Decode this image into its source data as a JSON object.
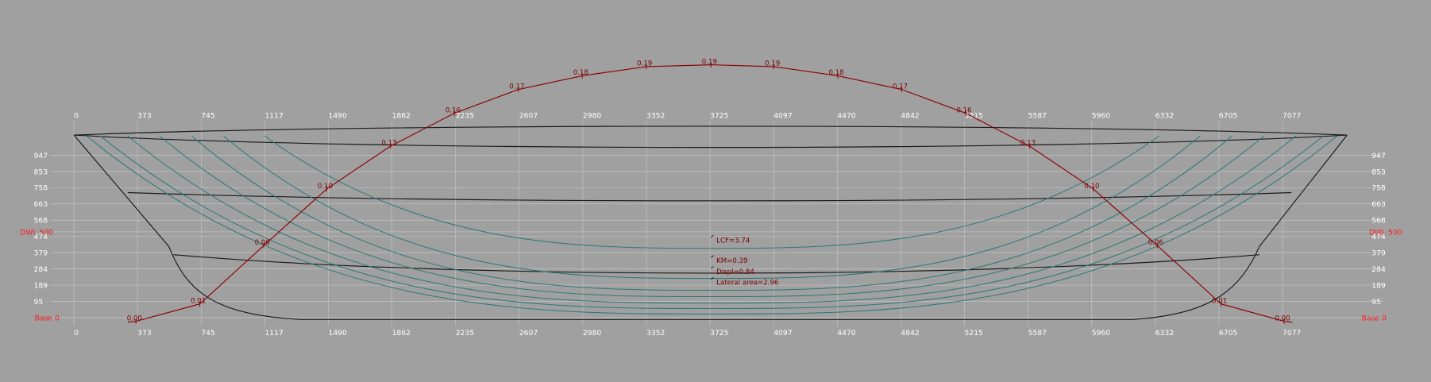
{
  "x_labels_top": [
    0,
    373,
    745,
    1117,
    1490,
    1862,
    2235,
    2607,
    2980,
    3352,
    3725,
    4097,
    4470,
    4842,
    5215,
    5587,
    5960,
    6332,
    6705,
    7077
  ],
  "x_labels_bottom": [
    0,
    373,
    745,
    1117,
    1490,
    1862,
    2235,
    2607,
    2980,
    3352,
    3725,
    4097,
    4470,
    4842,
    5215,
    5587,
    5960,
    6332,
    6705,
    7077
  ],
  "y_labels_left": [
    947,
    853,
    758,
    663,
    568,
    474,
    379,
    284,
    189,
    95
  ],
  "y_labels_right": [
    947,
    853,
    758,
    663,
    568,
    474,
    379,
    284,
    189,
    95
  ],
  "waterline_left": "DWL 500",
  "waterline_right": "DWL 500",
  "base_left": "Base 0",
  "base_right": "Base 0",
  "area_curve_labels": [
    "0.00",
    "0.01",
    "0.06",
    "0.10",
    "0.13",
    "0.16",
    "0.17",
    "0.18",
    "0.19",
    "0.19",
    "0.19",
    "0.18",
    "0.17",
    "0.16",
    "0.13",
    "0.10",
    "0.06",
    "0.01",
    "0.00"
  ],
  "annotations": [
    "LCF=3.74",
    "KM=0.39",
    "Displ=0.84",
    "Lateral area=2.96"
  ]
}
